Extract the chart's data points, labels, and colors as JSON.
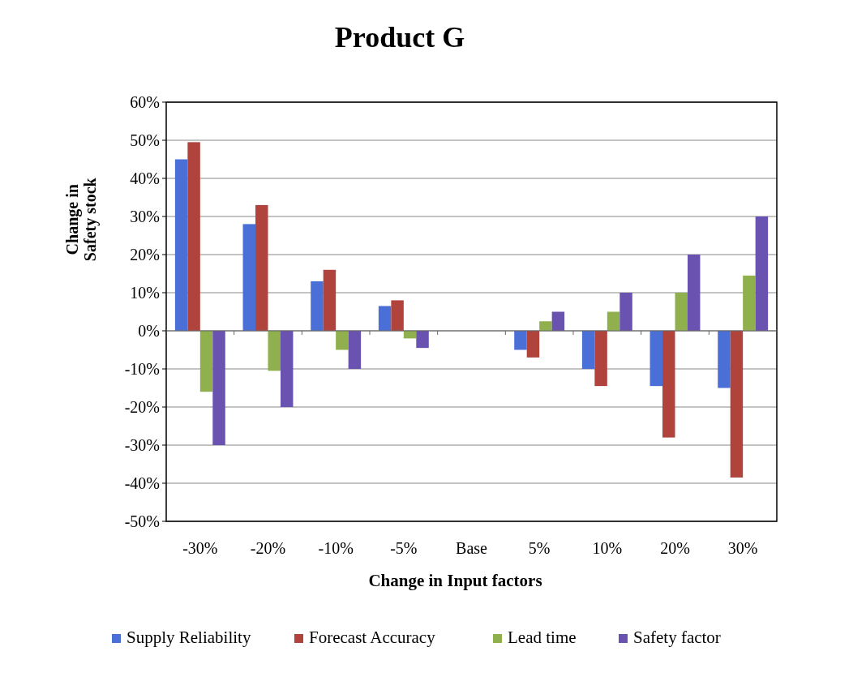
{
  "chart_data": {
    "type": "bar",
    "title": "Product G",
    "xlabel": "Change in Input factors",
    "ylabel": "Change in Safety stock",
    "categories": [
      "-30%",
      "-20%",
      "-10%",
      "-5%",
      "Base",
      "5%",
      "10%",
      "20%",
      "30%"
    ],
    "series": [
      {
        "name": "Supply Reliability",
        "color": "#4a6fd6",
        "values": [
          45,
          28,
          13,
          6.5,
          0,
          -5,
          -10,
          -14.5,
          -15
        ]
      },
      {
        "name": "Forecast Accuracy",
        "color": "#b0443c",
        "values": [
          49.5,
          33,
          16,
          8,
          0,
          -7,
          -14.5,
          -28,
          -38.5
        ]
      },
      {
        "name": "Lead time",
        "color": "#8fb04c",
        "values": [
          -16,
          -10.5,
          -5,
          -2,
          0,
          2.5,
          5,
          10,
          14.5
        ]
      },
      {
        "name": "Safety factor",
        "color": "#6a52b0",
        "values": [
          -30,
          -20,
          -10,
          -4.5,
          0,
          5,
          10,
          20,
          30
        ]
      }
    ],
    "ylim": [
      -50,
      60
    ],
    "yticks": [
      {
        "value": -50,
        "label": "-50%"
      },
      {
        "value": -40,
        "label": "-40%"
      },
      {
        "value": -30,
        "label": "-30%"
      },
      {
        "value": -20,
        "label": "-20%"
      },
      {
        "value": -10,
        "label": "-10%"
      },
      {
        "value": 0,
        "label": "0%"
      },
      {
        "value": 10,
        "label": "10%"
      },
      {
        "value": 20,
        "label": "20%"
      },
      {
        "value": 30,
        "label": "30%"
      },
      {
        "value": 40,
        "label": "40%"
      },
      {
        "value": 50,
        "label": "50%"
      },
      {
        "value": 60,
        "label": "60%"
      }
    ],
    "grid": "y",
    "legend": "bottom"
  }
}
